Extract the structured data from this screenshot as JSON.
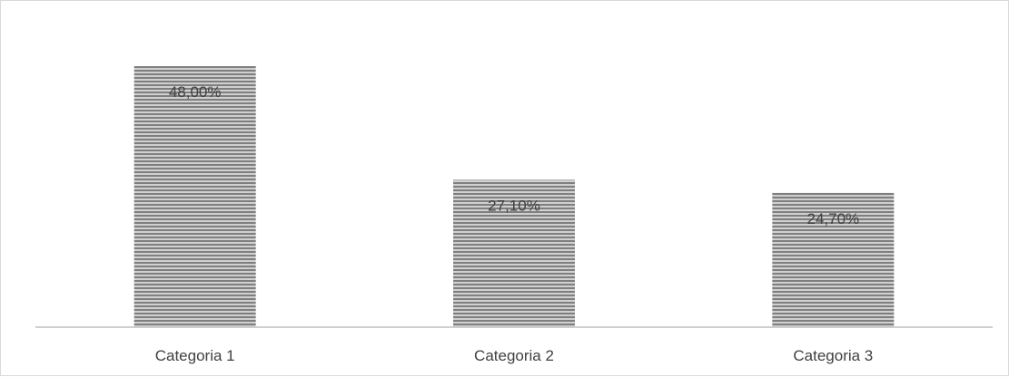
{
  "chart_data": {
    "type": "bar",
    "categories": [
      "Categoria 1",
      "Categoria 2",
      "Categoria 3"
    ],
    "values": [
      48.0,
      27.1,
      24.7
    ],
    "data_labels": [
      "48,00%",
      "27,10%",
      "24,70%"
    ],
    "title": "",
    "xlabel": "",
    "ylabel": "",
    "ylim": [
      0,
      60
    ],
    "grid": false,
    "legend": "none",
    "bar_fill": "horizontal-stripes",
    "colors": {
      "bar_stripe_dark": "#7f7f7f",
      "bar_stripe_light": "#d0d0d0",
      "axis": "#bfbfbf",
      "text": "#404040",
      "border": "#d9d9d9"
    }
  }
}
